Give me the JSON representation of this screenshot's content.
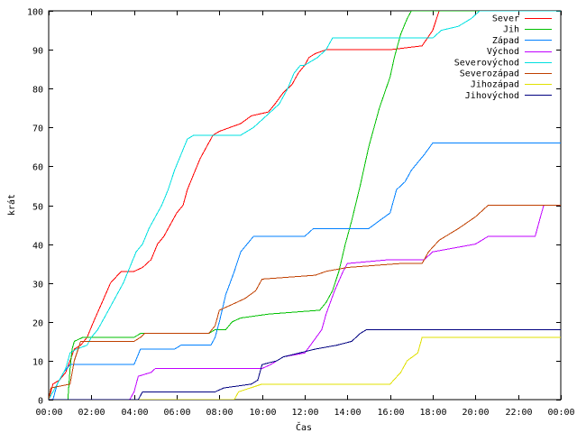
{
  "chart_data": {
    "type": "line",
    "title": "",
    "xlabel": "Čas",
    "ylabel": "krát",
    "xlim": [
      0,
      24
    ],
    "ylim": [
      0,
      100
    ],
    "x_ticks": [
      0,
      2,
      4,
      6,
      8,
      10,
      12,
      14,
      16,
      18,
      20,
      22,
      24
    ],
    "x_tick_labels": [
      "00:00",
      "02:00",
      "04:00",
      "06:00",
      "08:00",
      "10:00",
      "12:00",
      "14:00",
      "16:00",
      "18:00",
      "20:00",
      "22:00",
      "00:00"
    ],
    "y_ticks": [
      0,
      10,
      20,
      30,
      40,
      50,
      60,
      70,
      80,
      90,
      100
    ],
    "y_tick_labels": [
      "0",
      "10",
      "20",
      "30",
      "40",
      "50",
      "60",
      "70",
      "80",
      "90",
      "100"
    ],
    "grid": false,
    "legend_position": "top-right",
    "series": [
      {
        "name": "Sever",
        "color": "#ff0000",
        "points": [
          [
            0,
            0
          ],
          [
            0.1,
            2
          ],
          [
            0.2,
            4
          ],
          [
            0.5,
            5
          ],
          [
            0.8,
            7
          ],
          [
            1.0,
            10
          ],
          [
            1.2,
            13
          ],
          [
            1.5,
            14
          ],
          [
            1.8,
            16
          ],
          [
            2.1,
            20
          ],
          [
            2.5,
            25
          ],
          [
            2.9,
            30
          ],
          [
            3.4,
            33
          ],
          [
            4.0,
            33
          ],
          [
            4.4,
            34
          ],
          [
            4.8,
            36
          ],
          [
            5.1,
            40
          ],
          [
            5.4,
            42
          ],
          [
            5.6,
            44
          ],
          [
            6.0,
            48
          ],
          [
            6.3,
            50
          ],
          [
            6.5,
            54
          ],
          [
            6.8,
            58
          ],
          [
            7.1,
            62
          ],
          [
            7.4,
            65
          ],
          [
            7.7,
            68
          ],
          [
            8.0,
            69
          ],
          [
            9.0,
            71
          ],
          [
            9.5,
            73
          ],
          [
            10.3,
            74
          ],
          [
            10.6,
            76
          ],
          [
            11.0,
            79
          ],
          [
            11.4,
            81
          ],
          [
            11.7,
            84
          ],
          [
            12.0,
            86
          ],
          [
            12.2,
            88
          ],
          [
            12.5,
            89
          ],
          [
            13.0,
            90
          ],
          [
            14.0,
            90
          ],
          [
            16.0,
            90
          ],
          [
            17.5,
            91
          ],
          [
            18.0,
            95
          ],
          [
            18.3,
            100
          ],
          [
            24.0,
            100
          ]
        ]
      },
      {
        "name": "Jih",
        "color": "#00c000",
        "points": [
          [
            0,
            0
          ],
          [
            0.9,
            0
          ],
          [
            1.0,
            8
          ],
          [
            1.1,
            13
          ],
          [
            1.2,
            15
          ],
          [
            1.6,
            16
          ],
          [
            4.0,
            16
          ],
          [
            4.3,
            17
          ],
          [
            7.5,
            17
          ],
          [
            7.8,
            18
          ],
          [
            8.3,
            18
          ],
          [
            8.6,
            20
          ],
          [
            9.0,
            21
          ],
          [
            10.3,
            22
          ],
          [
            12.7,
            23
          ],
          [
            13.0,
            25
          ],
          [
            13.3,
            28
          ],
          [
            13.6,
            33
          ],
          [
            13.9,
            40
          ],
          [
            14.2,
            46
          ],
          [
            14.6,
            55
          ],
          [
            15.0,
            65
          ],
          [
            15.5,
            75
          ],
          [
            16.0,
            83
          ],
          [
            16.2,
            88
          ],
          [
            16.5,
            94
          ],
          [
            16.8,
            98
          ],
          [
            17.0,
            100
          ],
          [
            24.0,
            100
          ]
        ]
      },
      {
        "name": "Západ",
        "color": "#0080ff",
        "points": [
          [
            0,
            0
          ],
          [
            0.2,
            0
          ],
          [
            0.4,
            4
          ],
          [
            0.7,
            7
          ],
          [
            1.0,
            9
          ],
          [
            4.0,
            9
          ],
          [
            4.3,
            13
          ],
          [
            5.9,
            13
          ],
          [
            6.2,
            14
          ],
          [
            7.6,
            14
          ],
          [
            7.8,
            16
          ],
          [
            8.0,
            20
          ],
          [
            8.3,
            27
          ],
          [
            8.5,
            30
          ],
          [
            8.7,
            33
          ],
          [
            9.0,
            38
          ],
          [
            9.3,
            40
          ],
          [
            9.6,
            42
          ],
          [
            12.0,
            42
          ],
          [
            12.4,
            44
          ],
          [
            15.0,
            44
          ],
          [
            15.5,
            46
          ],
          [
            16.0,
            48
          ],
          [
            16.3,
            54
          ],
          [
            16.7,
            56
          ],
          [
            17.0,
            59
          ],
          [
            17.3,
            61
          ],
          [
            17.6,
            63
          ],
          [
            18.0,
            66
          ],
          [
            24.0,
            66
          ]
        ]
      },
      {
        "name": "Východ",
        "color": "#c000ff",
        "points": [
          [
            0,
            0
          ],
          [
            3.8,
            0
          ],
          [
            4.0,
            2
          ],
          [
            4.2,
            6
          ],
          [
            4.8,
            7
          ],
          [
            5.0,
            8
          ],
          [
            10.0,
            8
          ],
          [
            10.4,
            9
          ],
          [
            10.7,
            10
          ],
          [
            11.0,
            11
          ],
          [
            12.0,
            12
          ],
          [
            12.4,
            15
          ],
          [
            12.8,
            18
          ],
          [
            13.0,
            22
          ],
          [
            13.4,
            28
          ],
          [
            13.8,
            33
          ],
          [
            14.0,
            35
          ],
          [
            16.0,
            36
          ],
          [
            17.6,
            36
          ],
          [
            18.0,
            38
          ],
          [
            20.0,
            40
          ],
          [
            20.6,
            42
          ],
          [
            22.8,
            42
          ],
          [
            23.0,
            46
          ],
          [
            23.2,
            50
          ],
          [
            24.0,
            50
          ]
        ]
      },
      {
        "name": "Severovýchod",
        "color": "#00e0e0",
        "points": [
          [
            0,
            0
          ],
          [
            0.5,
            5
          ],
          [
            0.8,
            8
          ],
          [
            1.0,
            12
          ],
          [
            1.3,
            13
          ],
          [
            1.8,
            14
          ],
          [
            2.0,
            16
          ],
          [
            2.3,
            18
          ],
          [
            2.5,
            20
          ],
          [
            2.8,
            23
          ],
          [
            3.1,
            26
          ],
          [
            3.5,
            30
          ],
          [
            3.8,
            34
          ],
          [
            4.1,
            38
          ],
          [
            4.4,
            40
          ],
          [
            4.7,
            44
          ],
          [
            5.0,
            47
          ],
          [
            5.3,
            50
          ],
          [
            5.6,
            54
          ],
          [
            5.9,
            59
          ],
          [
            6.2,
            63
          ],
          [
            6.5,
            67
          ],
          [
            6.8,
            68
          ],
          [
            9.0,
            68
          ],
          [
            9.3,
            69
          ],
          [
            9.6,
            70
          ],
          [
            10.0,
            72
          ],
          [
            10.4,
            74
          ],
          [
            10.8,
            76
          ],
          [
            11.2,
            80
          ],
          [
            11.5,
            84
          ],
          [
            11.8,
            86
          ],
          [
            12.0,
            86
          ],
          [
            12.6,
            88
          ],
          [
            13.0,
            90
          ],
          [
            13.3,
            93
          ],
          [
            18.0,
            93
          ],
          [
            18.4,
            95
          ],
          [
            19.2,
            96
          ],
          [
            19.8,
            98
          ],
          [
            20.2,
            100
          ],
          [
            24.0,
            100
          ]
        ]
      },
      {
        "name": "Severozápad",
        "color": "#c04000",
        "points": [
          [
            0,
            0
          ],
          [
            0.1,
            3
          ],
          [
            1.0,
            4
          ],
          [
            1.2,
            10
          ],
          [
            1.5,
            15
          ],
          [
            4.0,
            15
          ],
          [
            4.3,
            16
          ],
          [
            4.5,
            17
          ],
          [
            7.5,
            17
          ],
          [
            7.8,
            19
          ],
          [
            8.0,
            23
          ],
          [
            8.8,
            25
          ],
          [
            9.2,
            26
          ],
          [
            9.7,
            28
          ],
          [
            10.0,
            31
          ],
          [
            12.5,
            32
          ],
          [
            13.0,
            33
          ],
          [
            14.0,
            34
          ],
          [
            16.5,
            35
          ],
          [
            17.5,
            35
          ],
          [
            17.8,
            38
          ],
          [
            18.3,
            41
          ],
          [
            19.2,
            44
          ],
          [
            20.0,
            47
          ],
          [
            20.6,
            50
          ],
          [
            24.0,
            50
          ]
        ]
      },
      {
        "name": "Jihozápad",
        "color": "#e0e000",
        "points": [
          [
            0,
            0
          ],
          [
            8.7,
            0
          ],
          [
            8.9,
            2
          ],
          [
            10.0,
            4
          ],
          [
            16.0,
            4
          ],
          [
            16.5,
            7
          ],
          [
            16.8,
            10
          ],
          [
            17.3,
            12
          ],
          [
            17.5,
            16
          ],
          [
            24.0,
            16
          ]
        ]
      },
      {
        "name": "Jihovýchod",
        "color": "#000080",
        "points": [
          [
            0,
            0
          ],
          [
            4.2,
            0
          ],
          [
            4.4,
            2
          ],
          [
            7.8,
            2
          ],
          [
            8.2,
            3
          ],
          [
            9.5,
            4
          ],
          [
            9.8,
            5
          ],
          [
            10.0,
            9
          ],
          [
            10.7,
            10
          ],
          [
            11.0,
            11
          ],
          [
            12.5,
            13
          ],
          [
            13.5,
            14
          ],
          [
            14.2,
            15
          ],
          [
            14.6,
            17
          ],
          [
            14.9,
            18
          ],
          [
            24.0,
            18
          ]
        ]
      }
    ]
  }
}
